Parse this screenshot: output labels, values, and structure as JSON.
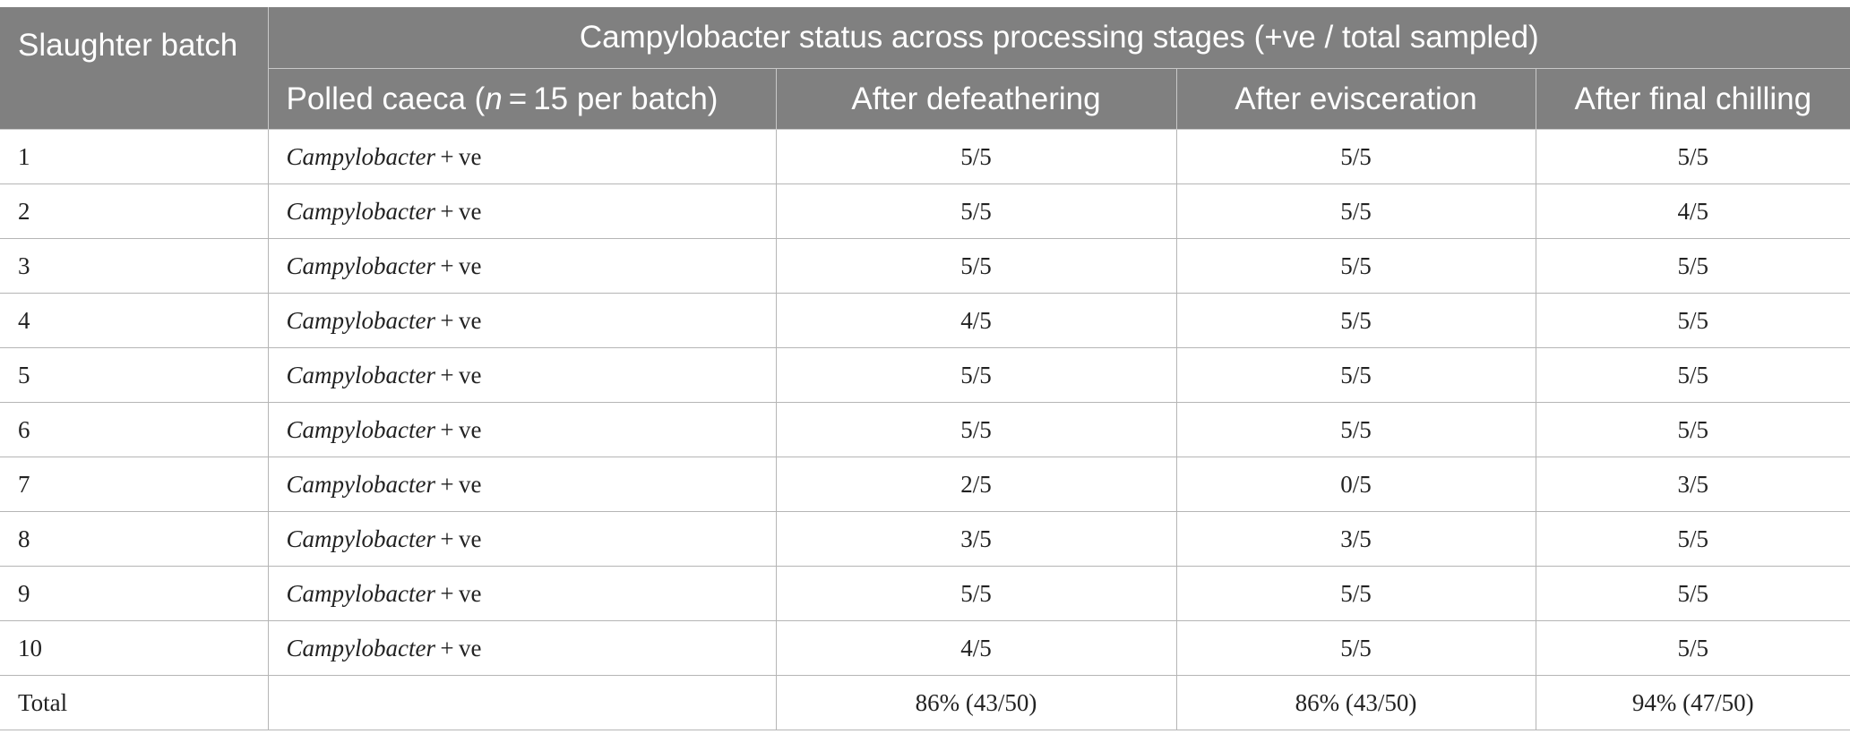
{
  "header": {
    "batch": "Slaughter batch",
    "group": "Campylobacter status across processing stages (+ve / total sampled)",
    "caeca_prefix": "Polled caeca (",
    "caeca_n": "n",
    "caeca_suffix": " = 15 per batch)",
    "defeathering": "After defeathering",
    "evisceration": "After evisceration",
    "chilling": "After final chilling"
  },
  "status_text": {
    "organism": "Campylobacter",
    "suffix": " + ve"
  },
  "rows": [
    {
      "batch": "1",
      "defeathering": "5/5",
      "evisceration": "5/5",
      "chilling": "5/5"
    },
    {
      "batch": "2",
      "defeathering": "5/5",
      "evisceration": "5/5",
      "chilling": "4/5"
    },
    {
      "batch": "3",
      "defeathering": "5/5",
      "evisceration": "5/5",
      "chilling": "5/5"
    },
    {
      "batch": "4",
      "defeathering": "4/5",
      "evisceration": "5/5",
      "chilling": "5/5"
    },
    {
      "batch": "5",
      "defeathering": "5/5",
      "evisceration": "5/5",
      "chilling": "5/5"
    },
    {
      "batch": "6",
      "defeathering": "5/5",
      "evisceration": "5/5",
      "chilling": "5/5"
    },
    {
      "batch": "7",
      "defeathering": "2/5",
      "evisceration": "0/5",
      "chilling": "3/5"
    },
    {
      "batch": "8",
      "defeathering": "3/5",
      "evisceration": "3/5",
      "chilling": "5/5"
    },
    {
      "batch": "9",
      "defeathering": "5/5",
      "evisceration": "5/5",
      "chilling": "5/5"
    },
    {
      "batch": "10",
      "defeathering": "4/5",
      "evisceration": "5/5",
      "chilling": "5/5"
    }
  ],
  "total": {
    "label": "Total",
    "defeathering": "86% (43/50)",
    "evisceration": "86% (43/50)",
    "chilling": "94% (47/50)"
  }
}
